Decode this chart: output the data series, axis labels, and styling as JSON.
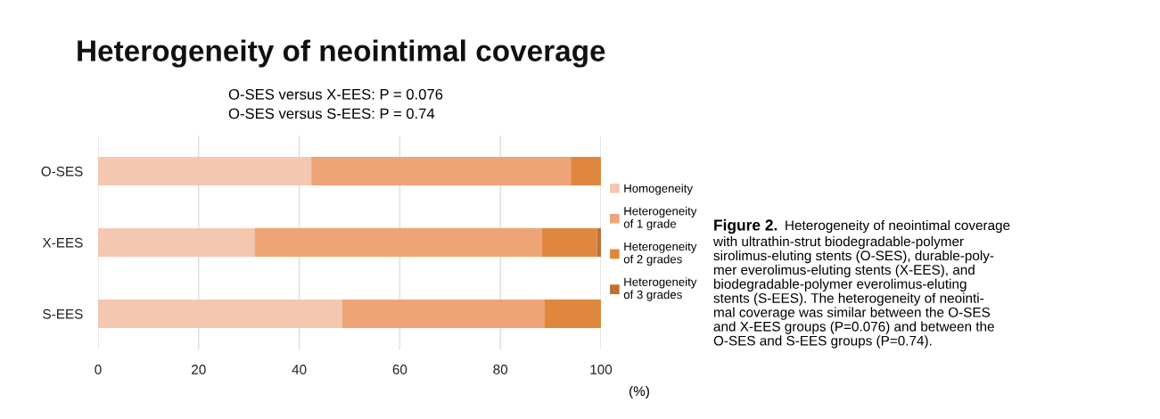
{
  "chart_data": {
    "type": "bar",
    "orientation": "horizontal",
    "stacked": true,
    "title": "Heterogeneity of neointimal coverage",
    "subtitle": "O-SES versus X-EES: P = 0.076\nO-SES versus S-EES: P = 0.74",
    "xlabel": "(%)",
    "categories": [
      "O-SES",
      "X-EES",
      "S-EES"
    ],
    "series": [
      {
        "name": "Homogeneity",
        "color": "#f4c7b0",
        "values": [
          42.4,
          31.1,
          48.5
        ]
      },
      {
        "name": "Heterogeneity\nof 1 grade",
        "color": "#efa477",
        "values": [
          51.6,
          57.1,
          40.2
        ]
      },
      {
        "name": "Heterogeneity\nof 2 grades",
        "color": "#df873f",
        "values": [
          6.0,
          11.0,
          11.3
        ]
      },
      {
        "name": "Heterogeneity\nof 3 grades",
        "color": "#bf7134",
        "values": [
          0,
          0.8,
          0
        ]
      }
    ],
    "xlim": [
      0,
      100
    ],
    "xticks": [
      0,
      20,
      40,
      60,
      80,
      100
    ],
    "grid": "x",
    "legend": "right",
    "annotations": [
      "Figure 2.",
      "Heterogeneity of neointimal coverage\nwith ultrathin-strut biodegradable-polymer\nsirolimus-eluting stents (O-SES), durable-poly-\nmer everolimus-eluting stents (X-EES), and\nbiodegradable-polymer everolimus-eluting\nstents (S-EES). The heterogeneity of neointi-\nmal coverage was similar between the O-SES\nand X-EES groups (P=0.076) and between the\nO-SES and S-EES groups (P=0.74)."
    ]
  }
}
